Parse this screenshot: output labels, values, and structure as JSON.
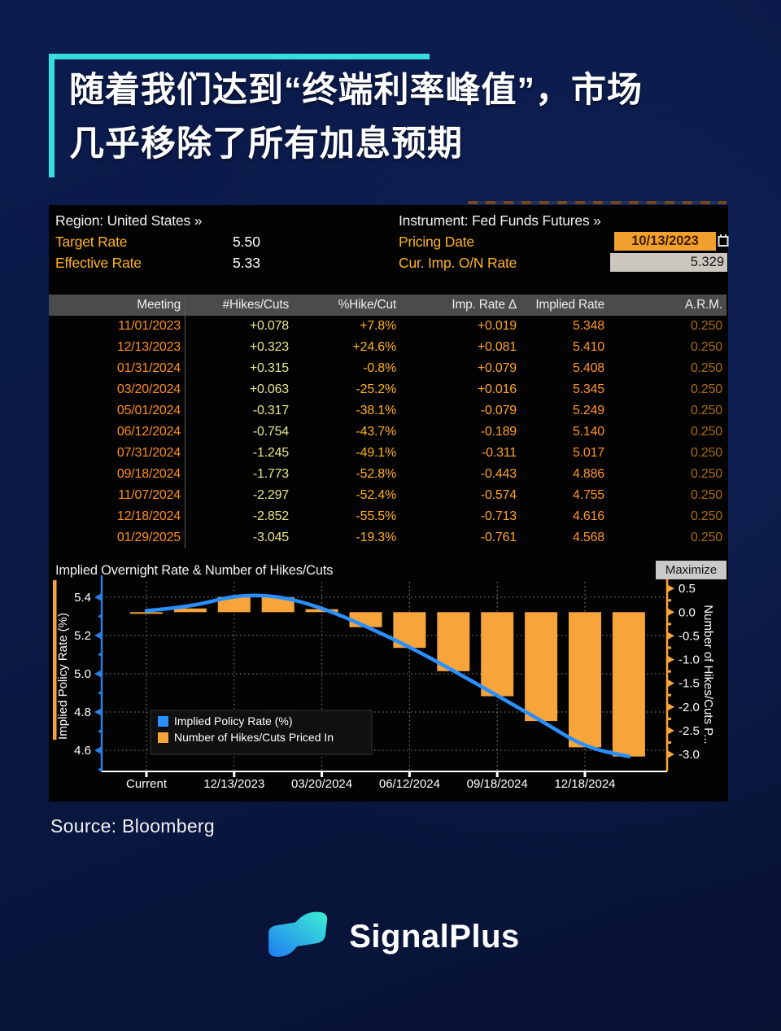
{
  "page": {
    "title_line1": "随着我们达到“终端利率峰值”，市场",
    "title_line2": "几乎移除了所有加息预期",
    "source": "Source: Bloomberg",
    "brand": "SignalPlus",
    "accent_color": "#35dfe0"
  },
  "terminal": {
    "region_label": "Region: United States »",
    "instrument_label": "Instrument: Fed Funds Futures »",
    "target_rate_label": "Target Rate",
    "target_rate_value": "5.50",
    "effective_rate_label": "Effective Rate",
    "effective_rate_value": "5.33",
    "pricing_date_label": "Pricing Date",
    "pricing_date_value": "10/13/2023",
    "cur_imp_label": "Cur. Imp. O/N Rate",
    "cur_imp_value": "5.329",
    "calendar_icon": "calendar-icon",
    "table": {
      "columns": [
        "Meeting",
        "#Hikes/Cuts",
        "%Hike/Cut",
        "Imp. Rate Δ",
        "Implied Rate",
        "A.R.M."
      ],
      "rows": [
        [
          "11/01/2023",
          "+0.078",
          "+7.8%",
          "+0.019",
          "5.348",
          "0.250"
        ],
        [
          "12/13/2023",
          "+0.323",
          "+24.6%",
          "+0.081",
          "5.410",
          "0.250"
        ],
        [
          "01/31/2024",
          "+0.315",
          "-0.8%",
          "+0.079",
          "5.408",
          "0.250"
        ],
        [
          "03/20/2024",
          "+0.063",
          "-25.2%",
          "+0.016",
          "5.345",
          "0.250"
        ],
        [
          "05/01/2024",
          "-0.317",
          "-38.1%",
          "-0.079",
          "5.249",
          "0.250"
        ],
        [
          "06/12/2024",
          "-0.754",
          "-43.7%",
          "-0.189",
          "5.140",
          "0.250"
        ],
        [
          "07/31/2024",
          "-1.245",
          "-49.1%",
          "-0.311",
          "5.017",
          "0.250"
        ],
        [
          "09/18/2024",
          "-1.773",
          "-52.8%",
          "-0.443",
          "4.886",
          "0.250"
        ],
        [
          "11/07/2024",
          "-2.297",
          "-52.4%",
          "-0.574",
          "4.755",
          "0.250"
        ],
        [
          "12/18/2024",
          "-2.852",
          "-55.5%",
          "-0.713",
          "4.616",
          "0.250"
        ],
        [
          "01/29/2025",
          "-3.045",
          "-19.3%",
          "-0.761",
          "4.568",
          "0.250"
        ]
      ]
    },
    "chart_title": "Implied Overnight Rate & Number of Hikes/Cuts",
    "maximize_label": "Maximize"
  },
  "chart_data": {
    "type": "line+bar",
    "title": "Implied Overnight Rate & Number of Hikes/Cuts",
    "x": [
      "Current",
      "11/01/2023",
      "12/13/2023",
      "01/31/2024",
      "03/20/2024",
      "05/01/2024",
      "06/12/2024",
      "07/31/2024",
      "09/18/2024",
      "11/07/2024",
      "12/18/2024",
      "01/29/2025"
    ],
    "series": [
      {
        "name": "Implied Policy Rate (%)",
        "type": "line",
        "axis": "left",
        "color": "#2a8fff",
        "values": [
          5.329,
          5.348,
          5.41,
          5.408,
          5.345,
          5.249,
          5.14,
          5.017,
          4.886,
          4.755,
          4.616,
          4.568
        ]
      },
      {
        "name": "Number of Hikes/Cuts Priced In",
        "type": "bar",
        "axis": "right",
        "color": "#f7a43a",
        "values": [
          0.0,
          0.078,
          0.323,
          0.315,
          0.063,
          -0.317,
          -0.754,
          -1.245,
          -1.773,
          -2.297,
          -2.852,
          -3.045
        ]
      }
    ],
    "left_axis": {
      "label": "Implied Policy Rate (%)",
      "ticks": [
        "5.4",
        "5.2",
        "5.0",
        "4.8",
        "4.6"
      ],
      "range": [
        4.49,
        5.48
      ],
      "color": "#2b7de0"
    },
    "right_axis": {
      "label": "Number of Hikes/Cuts P...",
      "ticks": [
        "0.5",
        "0.0",
        "-0.5",
        "-1.0",
        "-1.5",
        "-2.0",
        "-2.5",
        "-3.0"
      ],
      "range": [
        -3.36,
        0.64
      ],
      "color": "#f7a43a"
    },
    "x_axis": {
      "ticks": [
        {
          "index": 0,
          "label": "Current"
        },
        {
          "index": 2,
          "label": "12/13/2023"
        },
        {
          "index": 4,
          "label": "03/20/2024"
        },
        {
          "index": 6,
          "label": "06/12/2024"
        },
        {
          "index": 8,
          "label": "09/18/2024"
        },
        {
          "index": 10,
          "label": "12/18/2024"
        }
      ]
    },
    "grid": true,
    "legend_position": "bottom-left"
  }
}
